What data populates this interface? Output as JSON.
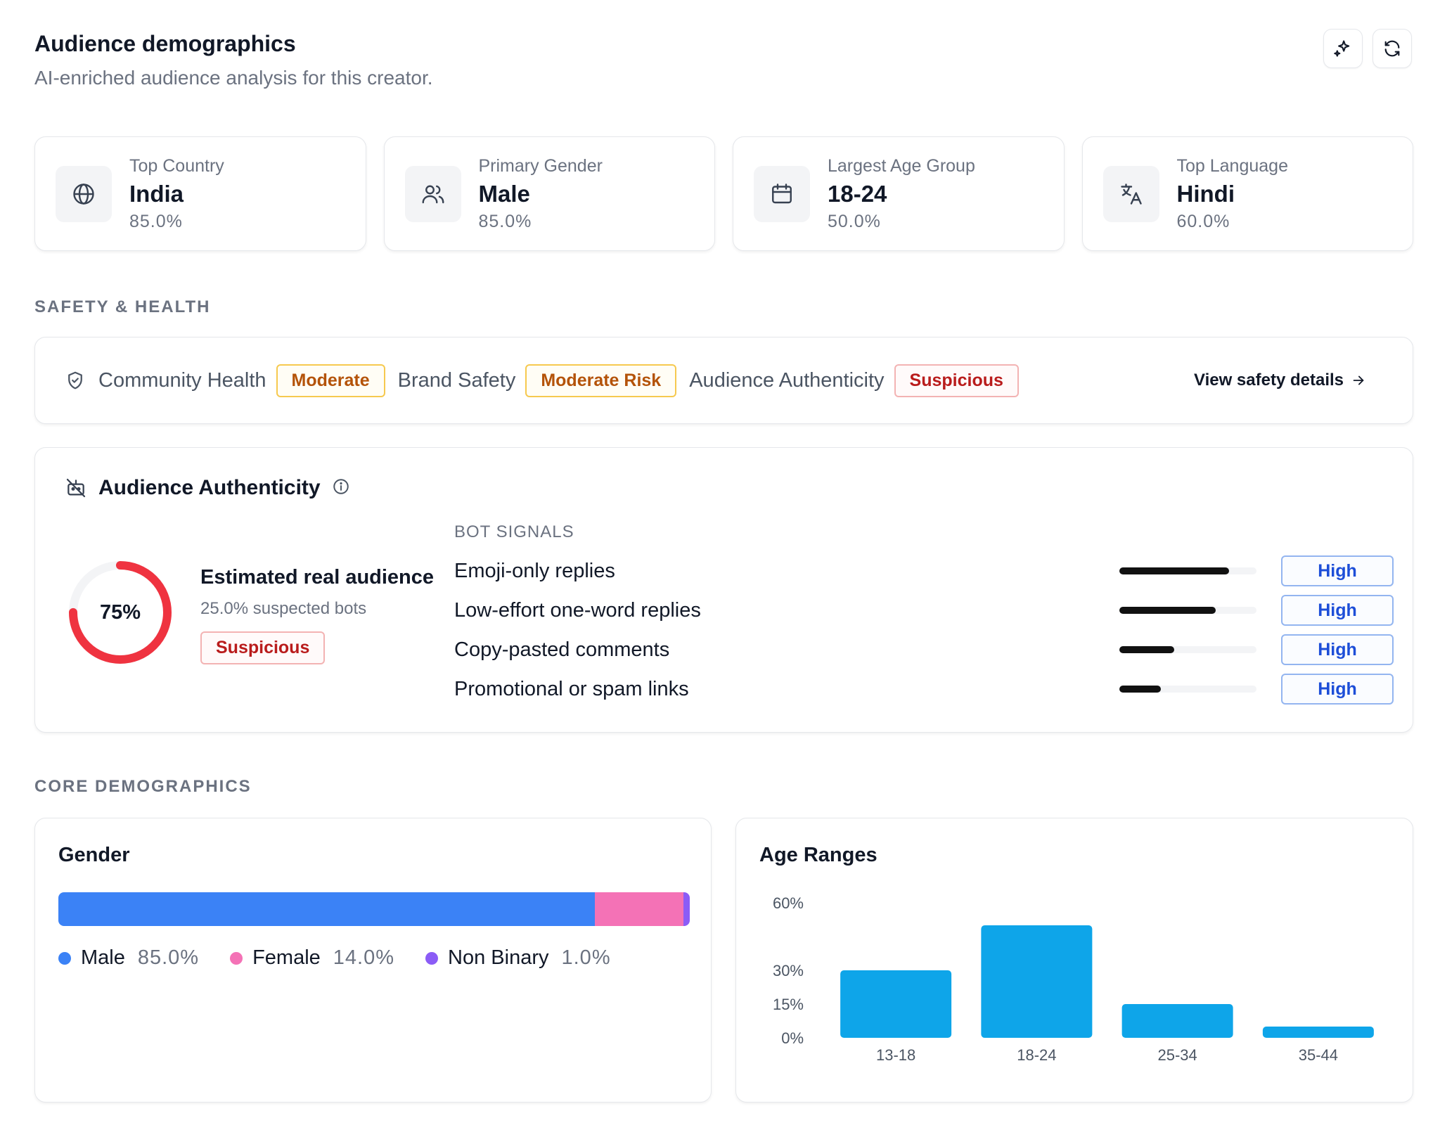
{
  "header": {
    "title": "Audience demographics",
    "subtitle": "AI-enriched audience analysis for this creator.",
    "actions": [
      "sparkles-icon",
      "refresh-icon"
    ]
  },
  "stats": [
    {
      "label": "Top Country",
      "value": "India",
      "pct": "85.0%",
      "icon": "globe-icon"
    },
    {
      "label": "Primary Gender",
      "value": "Male",
      "pct": "85.0%",
      "icon": "users-icon"
    },
    {
      "label": "Largest Age Group",
      "value": "18-24",
      "pct": "50.0%",
      "icon": "calendar-icon"
    },
    {
      "label": "Top Language",
      "value": "Hindi",
      "pct": "60.0%",
      "icon": "translate-icon"
    }
  ],
  "safety": {
    "section_label": "SAFETY & HEALTH",
    "community_label": "Community Health",
    "community_badge": "Moderate",
    "brand_label": "Brand Safety",
    "brand_badge": "Moderate Risk",
    "authenticity_label": "Audience Authenticity",
    "authenticity_badge": "Suspicious",
    "view_link": "View safety details",
    "colors": {
      "warn": "#b45309",
      "danger": "#b91c1c"
    }
  },
  "authenticity": {
    "title": "Audience Authenticity",
    "score": 75,
    "score_label": "75%",
    "estimate_title": "Estimated real audience",
    "suspected": "25.0% suspected bots",
    "badge": "Suspicious",
    "ring_color": "#ef3340",
    "bot_signals_label": "BOT SIGNALS",
    "signals": [
      {
        "name": "Emoji-only replies",
        "level": 0.8,
        "badge": "High"
      },
      {
        "name": "Low-effort one-word replies",
        "level": 0.7,
        "badge": "High"
      },
      {
        "name": "Copy-pasted comments",
        "level": 0.4,
        "badge": "High"
      },
      {
        "name": "Promotional or spam links",
        "level": 0.3,
        "badge": "High"
      }
    ]
  },
  "core": {
    "section_label": "CORE DEMOGRAPHICS",
    "gender": {
      "title": "Gender",
      "segments": [
        {
          "label": "Male",
          "value": 85.0,
          "display": "85.0%",
          "color": "#3b82f6"
        },
        {
          "label": "Female",
          "value": 14.0,
          "display": "14.0%",
          "color": "#f472b6"
        },
        {
          "label": "Non Binary",
          "value": 1.0,
          "display": "1.0%",
          "color": "#8b5cf6"
        }
      ]
    },
    "age": {
      "title": "Age Ranges"
    }
  },
  "chart_data": {
    "type": "bar",
    "title": "Age Ranges",
    "categories": [
      "13-18",
      "18-24",
      "25-34",
      "35-44"
    ],
    "values": [
      30,
      50,
      15,
      5
    ],
    "yticks": [
      0,
      15,
      30,
      60
    ],
    "ytick_labels": [
      "0%",
      "15%",
      "30%",
      "60%"
    ],
    "ylim": [
      0,
      60
    ],
    "color": "#0ea5e9",
    "grid": false,
    "legend": "none"
  }
}
